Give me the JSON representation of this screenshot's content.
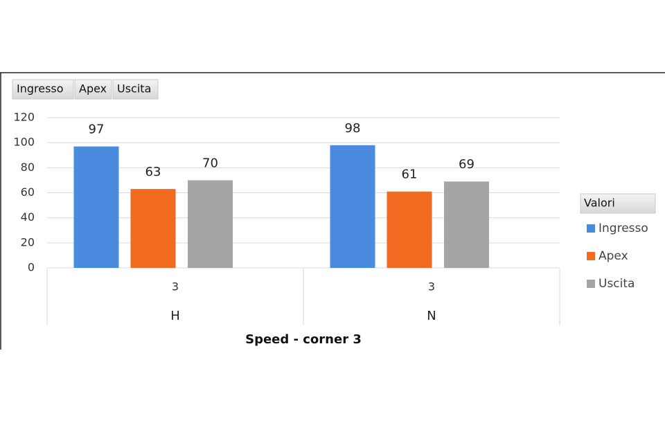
{
  "chart_data": {
    "type": "bar",
    "title": "Speed - corner 3",
    "categories": [
      "3",
      "3"
    ],
    "groups": [
      "H",
      "N"
    ],
    "series": [
      {
        "name": "Ingresso",
        "color": "#4a8be0",
        "values": [
          97,
          98
        ]
      },
      {
        "name": "Apex",
        "color": "#f26a1f",
        "values": [
          63,
          61
        ]
      },
      {
        "name": "Uscita",
        "color": "#a5a5a5",
        "values": [
          70,
          69
        ]
      }
    ],
    "legend_title": "Valori",
    "legend": "right",
    "ylim": [
      0,
      120
    ],
    "yticks": [
      0,
      20,
      40,
      60,
      80,
      100,
      120
    ],
    "grid": true
  }
}
